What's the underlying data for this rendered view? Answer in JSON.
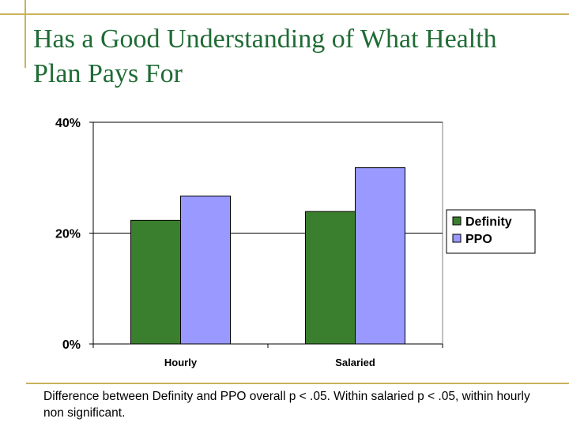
{
  "slide": {
    "title": "Has a Good Understanding of What Health Plan Pays For",
    "footnote": "Difference between Definity and PPO overall p < .05. Within salaried p < .05, within hourly non significant."
  },
  "colors": {
    "title": "#1f6b35",
    "accent_line": "#c9b25a",
    "definity": "#3a7f2e",
    "ppo": "#9999ff"
  },
  "chart_data": {
    "type": "bar",
    "categories": [
      "Hourly",
      "Salaried"
    ],
    "series": [
      {
        "name": "Definity",
        "values": [
          22.3,
          23.9
        ]
      },
      {
        "name": "PPO",
        "values": [
          26.7,
          31.8
        ]
      }
    ],
    "ylim": [
      0,
      40
    ],
    "yticks": [
      0,
      20,
      40
    ],
    "ytick_labels": [
      "0%",
      "20%",
      "40%"
    ],
    "grid": true,
    "legend_position": "right"
  }
}
